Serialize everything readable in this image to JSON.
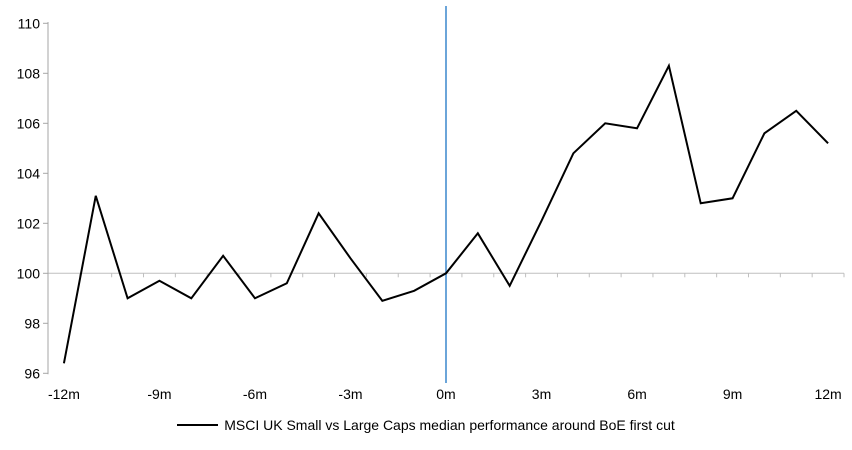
{
  "chart_data": {
    "type": "line",
    "x_months": [
      -12,
      -11,
      -10,
      -9,
      -8,
      -7,
      -6,
      -5,
      -4,
      -3,
      -2,
      -1,
      0,
      1,
      2,
      3,
      4,
      5,
      6,
      7,
      8,
      9,
      10,
      11,
      12
    ],
    "series": [
      {
        "name": "MSCI UK Small vs Large Caps median performance around BoE first cut",
        "values": [
          96.4,
          103.1,
          99.0,
          99.7,
          99.0,
          100.7,
          99.0,
          99.6,
          102.4,
          100.6,
          98.9,
          99.3,
          100.0,
          101.6,
          99.5,
          102.1,
          104.8,
          106.0,
          105.8,
          108.3,
          102.8,
          103.0,
          105.6,
          106.5,
          105.2
        ]
      }
    ],
    "x_tick_labels": [
      "-12m",
      "-9m",
      "-6m",
      "-3m",
      "0m",
      "3m",
      "6m",
      "9m",
      "12m"
    ],
    "x_tick_positions": [
      -12,
      -9,
      -6,
      -3,
      0,
      3,
      6,
      9,
      12
    ],
    "y_ticks": [
      96,
      98,
      100,
      102,
      104,
      106,
      108,
      110
    ],
    "ylim": [
      96,
      110
    ],
    "baseline_value": 100,
    "event_line_at_month": 0,
    "grid": "baseline-only",
    "legend_position": "bottom"
  },
  "colors": {
    "series_line": "#000000",
    "event_line": "#5B9BD5",
    "axis": "#A6A6A6",
    "baseline": "#BFBFBF",
    "text": "#000000",
    "background": "#FFFFFF"
  },
  "legend": {
    "label": "MSCI UK Small vs Large Caps median performance around BoE first cut"
  }
}
